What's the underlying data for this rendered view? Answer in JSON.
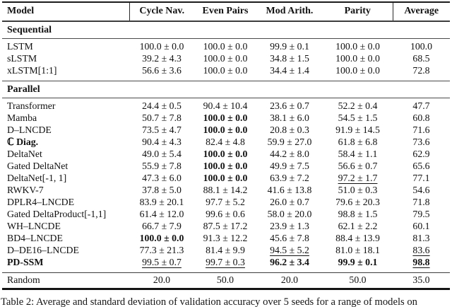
{
  "table": {
    "columns": [
      "Model",
      "Cycle Nav.",
      "Even Pairs",
      "Mod Arith.",
      "Parity",
      "Average"
    ],
    "sections": [
      {
        "label": "Sequential",
        "rows": [
          {
            "model": "LSTM",
            "bold": false,
            "cells": [
              {
                "text": "100.0 ± 0.0",
                "style": ""
              },
              {
                "text": "100.0 ± 0.0",
                "style": ""
              },
              {
                "text": "99.9 ± 0.1",
                "style": ""
              },
              {
                "text": "100.0 ± 0.0",
                "style": ""
              },
              {
                "text": "100.0",
                "style": ""
              }
            ]
          },
          {
            "model": "sLSTM",
            "bold": false,
            "cells": [
              {
                "text": "39.2 ± 4.3",
                "style": ""
              },
              {
                "text": "100.0 ± 0.0",
                "style": ""
              },
              {
                "text": "34.8 ± 1.5",
                "style": ""
              },
              {
                "text": "100.0 ± 0.0",
                "style": ""
              },
              {
                "text": "68.5",
                "style": ""
              }
            ]
          },
          {
            "model": "xLSTM[1:1]",
            "bold": false,
            "cells": [
              {
                "text": "56.6 ± 3.6",
                "style": ""
              },
              {
                "text": "100.0 ± 0.0",
                "style": ""
              },
              {
                "text": "34.4 ± 1.4",
                "style": ""
              },
              {
                "text": "100.0 ± 0.0",
                "style": ""
              },
              {
                "text": "72.8",
                "style": ""
              }
            ]
          }
        ]
      },
      {
        "label": "Parallel",
        "rows": [
          {
            "model": "Transformer",
            "bold": false,
            "cells": [
              {
                "text": "24.4 ± 0.5",
                "style": ""
              },
              {
                "text": "90.4 ± 10.4",
                "style": ""
              },
              {
                "text": "23.6 ± 0.7",
                "style": ""
              },
              {
                "text": "52.2 ± 0.4",
                "style": ""
              },
              {
                "text": "47.7",
                "style": ""
              }
            ]
          },
          {
            "model": "Mamba",
            "bold": false,
            "cells": [
              {
                "text": "50.7 ± 7.8",
                "style": ""
              },
              {
                "text": "100.0 ± 0.0",
                "style": "b"
              },
              {
                "text": "38.1 ± 6.0",
                "style": ""
              },
              {
                "text": "54.5 ± 1.5",
                "style": ""
              },
              {
                "text": "60.8",
                "style": ""
              }
            ]
          },
          {
            "model": "D–LNCDE",
            "bold": false,
            "cells": [
              {
                "text": "73.5 ± 4.7",
                "style": ""
              },
              {
                "text": "100.0 ± 0.0",
                "style": "b"
              },
              {
                "text": "20.8 ± 0.3",
                "style": ""
              },
              {
                "text": "91.9 ± 14.5",
                "style": ""
              },
              {
                "text": "71.6",
                "style": ""
              }
            ]
          },
          {
            "model": "ℂ Diag.",
            "bold": true,
            "cells": [
              {
                "text": "90.4 ± 4.3",
                "style": ""
              },
              {
                "text": "82.4 ± 4.8",
                "style": ""
              },
              {
                "text": "59.9 ± 27.0",
                "style": ""
              },
              {
                "text": "61.8 ± 6.8",
                "style": ""
              },
              {
                "text": "73.6",
                "style": ""
              }
            ]
          },
          {
            "model": "DeltaNet",
            "bold": false,
            "cells": [
              {
                "text": "49.0 ± 5.4",
                "style": ""
              },
              {
                "text": "100.0 ± 0.0",
                "style": "b"
              },
              {
                "text": "44.2 ± 8.0",
                "style": ""
              },
              {
                "text": "58.4 ± 1.1",
                "style": ""
              },
              {
                "text": "62.9",
                "style": ""
              }
            ]
          },
          {
            "model": "Gated DeltaNet",
            "bold": false,
            "cells": [
              {
                "text": "55.9 ± 7.8",
                "style": ""
              },
              {
                "text": "100.0 ± 0.0",
                "style": "b"
              },
              {
                "text": "49.9 ± 7.5",
                "style": ""
              },
              {
                "text": "56.6 ± 0.7",
                "style": ""
              },
              {
                "text": "65.6",
                "style": ""
              }
            ]
          },
          {
            "model": "DeltaNet[-1, 1]",
            "bold": false,
            "cells": [
              {
                "text": "47.3 ± 6.0",
                "style": ""
              },
              {
                "text": "100.0 ± 0.0",
                "style": "b"
              },
              {
                "text": "63.9 ± 7.2",
                "style": ""
              },
              {
                "text": "97.2 ± 1.7",
                "style": "u"
              },
              {
                "text": "77.1",
                "style": ""
              }
            ]
          },
          {
            "model": "RWKV-7",
            "bold": false,
            "cells": [
              {
                "text": "37.8 ± 5.0",
                "style": ""
              },
              {
                "text": "88.1 ± 14.2",
                "style": ""
              },
              {
                "text": "41.6 ± 13.8",
                "style": ""
              },
              {
                "text": "51.0 ± 0.3",
                "style": ""
              },
              {
                "text": "54.6",
                "style": ""
              }
            ]
          },
          {
            "model": "DPLR4–LNCDE",
            "bold": false,
            "cells": [
              {
                "text": "83.9 ± 20.1",
                "style": ""
              },
              {
                "text": "97.7 ± 5.2",
                "style": ""
              },
              {
                "text": "26.0 ± 0.7",
                "style": ""
              },
              {
                "text": "79.6 ± 20.3",
                "style": ""
              },
              {
                "text": "71.8",
                "style": ""
              }
            ]
          },
          {
            "model": "Gated DeltaProduct[-1,1]",
            "bold": false,
            "cells": [
              {
                "text": "61.4 ± 12.0",
                "style": ""
              },
              {
                "text": "99.6 ± 0.6",
                "style": ""
              },
              {
                "text": "58.0 ± 20.0",
                "style": ""
              },
              {
                "text": "98.8 ± 1.5",
                "style": ""
              },
              {
                "text": "79.5",
                "style": ""
              }
            ]
          },
          {
            "model": "WH–LNCDE",
            "bold": false,
            "cells": [
              {
                "text": "66.7 ± 7.9",
                "style": ""
              },
              {
                "text": "87.5 ± 17.2",
                "style": ""
              },
              {
                "text": "23.9 ± 1.3",
                "style": ""
              },
              {
                "text": "62.1 ± 2.2",
                "style": ""
              },
              {
                "text": "60.1",
                "style": ""
              }
            ]
          },
          {
            "model": "BD4–LNCDE",
            "bold": false,
            "cells": [
              {
                "text": "100.0 ± 0.0",
                "style": "b"
              },
              {
                "text": "91.3 ± 12.2",
                "style": ""
              },
              {
                "text": "45.6 ± 7.8",
                "style": ""
              },
              {
                "text": "88.4 ± 13.9",
                "style": ""
              },
              {
                "text": "81.3",
                "style": ""
              }
            ]
          },
          {
            "model": "D–DE16–LNCDE",
            "bold": false,
            "cells": [
              {
                "text": "77.3 ± 21.3",
                "style": ""
              },
              {
                "text": "81.4 ± 9.9",
                "style": ""
              },
              {
                "text": "94.5 ± 5.2",
                "style": "u"
              },
              {
                "text": "81.0 ± 18.1",
                "style": ""
              },
              {
                "text": "83.6",
                "style": "u"
              }
            ]
          },
          {
            "model": "PD-SSM",
            "bold": true,
            "cells": [
              {
                "text": "99.5 ± 0.7",
                "style": "u"
              },
              {
                "text": "99.7 ± 0.3",
                "style": "u"
              },
              {
                "text": "96.2 ± 3.4",
                "style": "b"
              },
              {
                "text": "99.9 ± 0.1",
                "style": "b"
              },
              {
                "text": "98.8",
                "style": "bu"
              }
            ]
          }
        ]
      }
    ],
    "random_row": {
      "model": "Random",
      "cells": [
        {
          "text": "20.0",
          "style": ""
        },
        {
          "text": "50.0",
          "style": ""
        },
        {
          "text": "20.0",
          "style": ""
        },
        {
          "text": "50.0",
          "style": ""
        },
        {
          "text": "35.0",
          "style": ""
        }
      ]
    },
    "caption": "Table 2: Average and standard deviation of validation accuracy over 5 seeds for a range of models on"
  }
}
